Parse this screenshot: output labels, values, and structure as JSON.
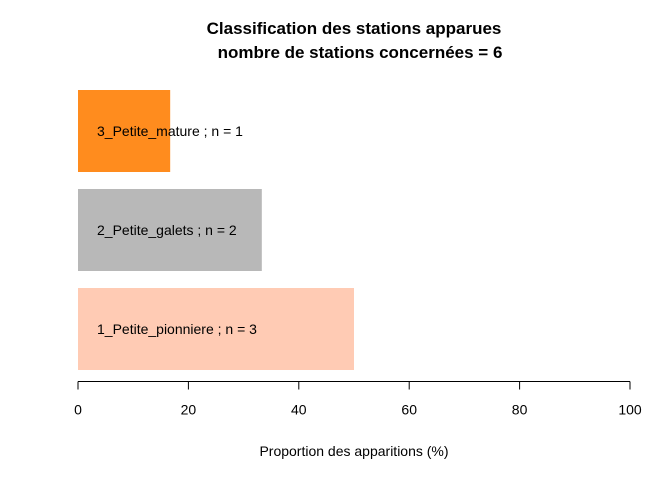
{
  "chart_data": {
    "type": "bar",
    "orientation": "horizontal",
    "title": "Classification des stations apparues",
    "subtitle": "nombre de stations concernées = 6",
    "xlabel": "Proportion des apparitions (%)",
    "ylabel": "",
    "xlim": [
      0,
      100
    ],
    "xticks": [
      "0",
      "20",
      "40",
      "60",
      "80",
      "100"
    ],
    "grid": false,
    "categories": [
      "1_Petite_pionniere ; n = 3",
      "2_Petite_galets ; n = 2",
      "3_Petite_mature ; n = 1"
    ],
    "values": [
      50,
      33.3,
      16.7
    ],
    "colors": [
      "#FFCBB4",
      "#B8B8B8",
      "#FF8C1E"
    ]
  }
}
